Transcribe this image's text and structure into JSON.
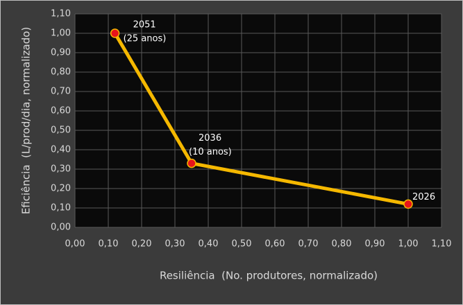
{
  "chart_data": {
    "type": "line",
    "x_label": "Resiliência  (No. produtores, normalizado)",
    "y_label": "Eficiência  (L/prod/dia, normalizado)",
    "x": [
      0.12,
      0.35,
      1.0
    ],
    "values": [
      1.0,
      0.33,
      0.12
    ],
    "point_labels": [
      [
        "2051",
        "(25 anos)"
      ],
      [
        "2036",
        "(10 anos)"
      ],
      [
        "2026"
      ]
    ],
    "color": "#f5b800",
    "marker_color": "#e8141b",
    "xlim": [
      0,
      1.1
    ],
    "ylim": [
      0,
      1.1
    ],
    "xticks": [
      {
        "value": 0,
        "label": "0,00"
      },
      {
        "value": 0.1,
        "label": "0,10"
      },
      {
        "value": 0.2,
        "label": "0,20"
      },
      {
        "value": 0.3,
        "label": "0,30"
      },
      {
        "value": 0.4,
        "label": "0,40"
      },
      {
        "value": 0.5,
        "label": "0,50"
      },
      {
        "value": 0.6,
        "label": "0,60"
      },
      {
        "value": 0.7,
        "label": "0,70"
      },
      {
        "value": 0.8,
        "label": "0,80"
      },
      {
        "value": 0.9,
        "label": "0,90"
      },
      {
        "value": 1.0,
        "label": "1,00"
      },
      {
        "value": 1.1,
        "label": "1,10"
      }
    ],
    "yticks": [
      {
        "value": 0,
        "label": "0,00"
      },
      {
        "value": 0.1,
        "label": "0,10"
      },
      {
        "value": 0.2,
        "label": "0,20"
      },
      {
        "value": 0.3,
        "label": "0,30"
      },
      {
        "value": 0.4,
        "label": "0,40"
      },
      {
        "value": 0.5,
        "label": "0,50"
      },
      {
        "value": 0.6,
        "label": "0,60"
      },
      {
        "value": 0.7,
        "label": "0,70"
      },
      {
        "value": 0.8,
        "label": "0,80"
      },
      {
        "value": 0.9,
        "label": "0,90"
      },
      {
        "value": 1.0,
        "label": "1,00"
      },
      {
        "value": 1.1,
        "label": "1,10"
      }
    ],
    "grid": true
  }
}
